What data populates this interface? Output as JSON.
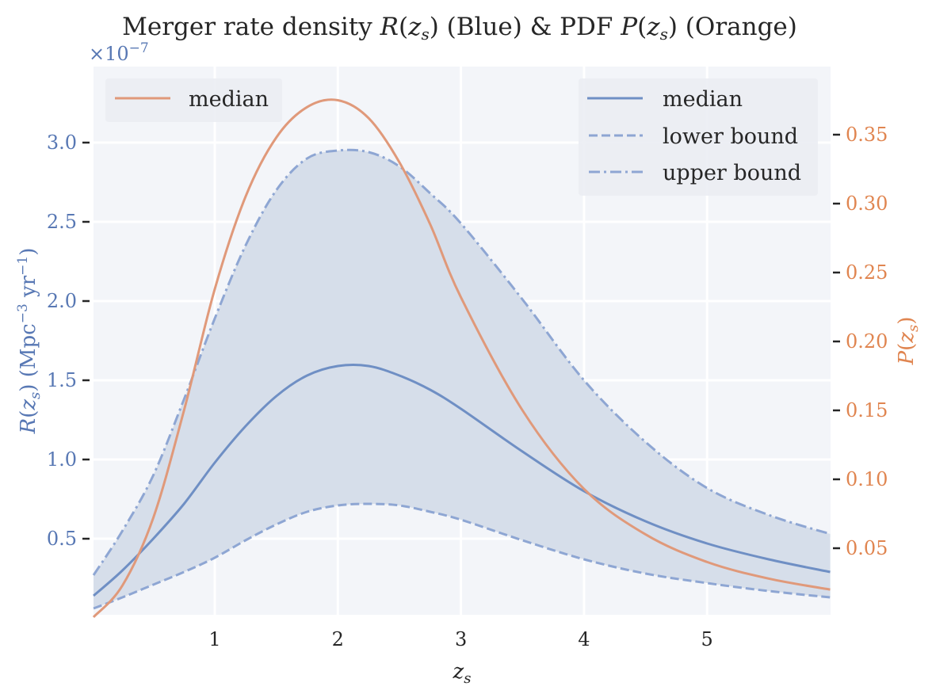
{
  "chart_data": {
    "type": "line",
    "title": "Merger rate density R(z_s) (Blue) & PDF P(z_s) (Orange)",
    "xlabel": "z_s",
    "ylabel_left": "R(z_s) (Mpc^-3 yr^-1)",
    "ylabel_right": "P(z_s)",
    "left_axis_multiplier": "×10^-7",
    "xlim": [
      0.015,
      6.0
    ],
    "ylim_left": [
      0.02,
      3.47
    ],
    "ylim_right": [
      0.0,
      0.4
    ],
    "x_ticks": [
      1,
      2,
      3,
      4,
      5
    ],
    "y_ticks_left": [
      0.5,
      1.0,
      1.5,
      2.0,
      2.5,
      3.0
    ],
    "y_ticks_right": [
      0.05,
      0.1,
      0.15,
      0.2,
      0.25,
      0.3,
      0.35
    ],
    "grid": true,
    "legend_left": {
      "position": "upper left",
      "entries": [
        "median"
      ]
    },
    "legend_right": {
      "position": "upper right",
      "entries": [
        "median",
        "lower bound",
        "upper bound"
      ]
    },
    "x": [
      0.015,
      0.25,
      0.5,
      0.75,
      1.0,
      1.25,
      1.5,
      1.75,
      2.0,
      2.25,
      2.5,
      2.75,
      3.0,
      3.5,
      4.0,
      4.5,
      5.0,
      5.5,
      6.0
    ],
    "series": [
      {
        "name": "median",
        "axis": "left",
        "color": "#6f8fc4",
        "style": "solid",
        "values": [
          0.14,
          0.3,
          0.5,
          0.72,
          0.98,
          1.21,
          1.4,
          1.53,
          1.59,
          1.59,
          1.53,
          1.44,
          1.32,
          1.05,
          0.8,
          0.61,
          0.47,
          0.37,
          0.29
        ]
      },
      {
        "name": "lower bound",
        "axis": "left",
        "color": "#8ea6d3",
        "style": "dashed",
        "values": [
          0.06,
          0.13,
          0.21,
          0.29,
          0.38,
          0.49,
          0.59,
          0.67,
          0.71,
          0.72,
          0.71,
          0.67,
          0.62,
          0.49,
          0.37,
          0.28,
          0.22,
          0.17,
          0.13
        ]
      },
      {
        "name": "upper bound",
        "axis": "left",
        "color": "#8ea6d3",
        "style": "dashdot",
        "values": [
          0.27,
          0.55,
          0.9,
          1.38,
          1.89,
          2.35,
          2.7,
          2.9,
          2.95,
          2.94,
          2.85,
          2.68,
          2.49,
          2.01,
          1.5,
          1.11,
          0.82,
          0.65,
          0.53
        ]
      },
      {
        "name": "median",
        "axis": "right",
        "color": "#e0997a",
        "style": "solid",
        "values": [
          0.0,
          0.023,
          0.072,
          0.15,
          0.238,
          0.305,
          0.348,
          0.37,
          0.375,
          0.362,
          0.33,
          0.285,
          0.232,
          0.15,
          0.093,
          0.06,
          0.04,
          0.028,
          0.02
        ]
      }
    ]
  },
  "labels": {
    "title_prefix": "Merger rate density ",
    "title_mid": " (Blue) & PDF ",
    "title_suffix": " (Orange)",
    "legend_left": [
      "median"
    ],
    "legend_right": [
      "median",
      "lower bound",
      "upper bound"
    ]
  }
}
